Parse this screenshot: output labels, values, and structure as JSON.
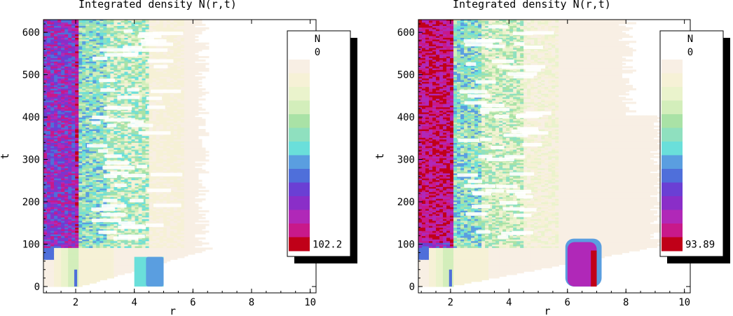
{
  "chart_data": [
    {
      "type": "heatmap",
      "title": "Integrated density N(r,t)",
      "xlabel": "r",
      "ylabel": "t",
      "xlim": [
        0.9,
        10.2
      ],
      "ylim": [
        -15,
        630
      ],
      "xticks": [
        "2",
        "4",
        "6",
        "8",
        "10"
      ],
      "yticks": [
        "0",
        "100",
        "200",
        "300",
        "400",
        "500",
        "600"
      ],
      "legend": {
        "title": "N",
        "min_label": "0",
        "max_label": "102.2",
        "position": "right"
      },
      "initial_block": {
        "r_range": [
          4.0,
          5.0
        ],
        "t_range": [
          0,
          70
        ]
      },
      "grid": false
    },
    {
      "type": "heatmap",
      "title": "Integrated density N(r,t)",
      "xlabel": "r",
      "ylabel": "t",
      "xlim": [
        0.9,
        10.2
      ],
      "ylim": [
        -15,
        630
      ],
      "xticks": [
        "2",
        "4",
        "6",
        "8",
        "10"
      ],
      "yticks": [
        "0",
        "100",
        "200",
        "300",
        "400",
        "500",
        "600"
      ],
      "legend": {
        "title": "N",
        "min_label": "0",
        "max_label": "93.89",
        "position": "right"
      },
      "initial_block": {
        "r_range": [
          6.0,
          7.0
        ],
        "t_range": [
          0,
          105
        ]
      },
      "grid": false
    }
  ],
  "colorscale": [
    "#f8efe4",
    "#f6f1d6",
    "#eaf3cc",
    "#d3eebb",
    "#a9e2a6",
    "#8fe0bf",
    "#6adfda",
    "#5a9ee0",
    "#4f6fda",
    "#6a3fd4",
    "#8a2ec8",
    "#b028b8",
    "#c8198a",
    "#c00018"
  ]
}
